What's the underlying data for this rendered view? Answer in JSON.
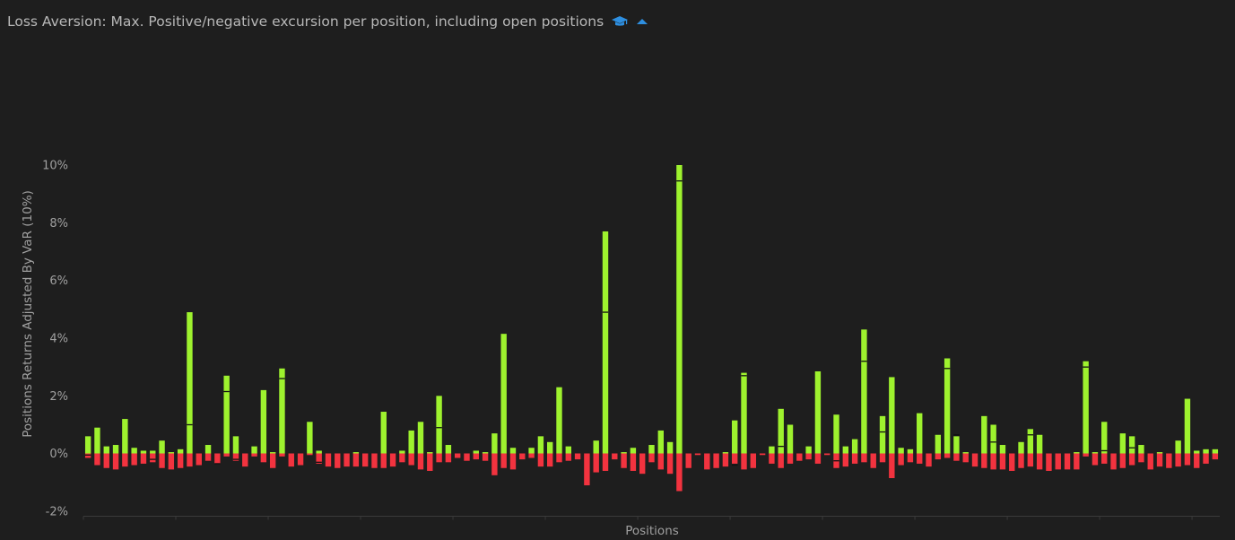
{
  "header": {
    "title": "Loss Aversion: Max. Positive/negative excursion per position, including open positions",
    "info_icon": "graduation-cap-icon",
    "collapse_icon": "caret-up-icon"
  },
  "colors": {
    "background": "#1e1e1e",
    "positive": "#9ef22e",
    "negative": "#f2333f",
    "marker": "#111111",
    "axis": "#3a3a3a",
    "text": "#a0a0a0",
    "accent": "#2e8fe0"
  },
  "chart_data": {
    "type": "bar",
    "title": "Loss Aversion: Max. Positive/negative excursion per position, including open positions",
    "xlabel": "Positions",
    "ylabel": "Positions Returns Adjusted By VaR (10%)",
    "ylim": [
      -2,
      10
    ],
    "y_ticks": [
      -2,
      0,
      2,
      4,
      6,
      8,
      10
    ],
    "y_tick_labels": [
      "-2%",
      "0%",
      "2%",
      "4%",
      "6%",
      "8%",
      "10%"
    ],
    "grid": false,
    "legend": "none",
    "series": [
      {
        "values": [
          0.6,
          0.9,
          0.25,
          0.3,
          1.2,
          0.2,
          0.1,
          0.1,
          0.45,
          0.05,
          0.15,
          4.9,
          0,
          0.3,
          0,
          2.7,
          0.6,
          0,
          0.25,
          2.2,
          0.05,
          2.95,
          0,
          0,
          1.1,
          0.1,
          0,
          0,
          0,
          0.05,
          0,
          0,
          1.45,
          0,
          0.1,
          0.8,
          1.1,
          0.05,
          2.0,
          0.3,
          0,
          0,
          0.1,
          0.05,
          0.7,
          4.15,
          0.2,
          0,
          0.2,
          0.6,
          0.4,
          2.3,
          0.25,
          0,
          0,
          0.45,
          7.7,
          0,
          0.05,
          0.2,
          0,
          0.3,
          0.8,
          0.4,
          10.0,
          0,
          0,
          0,
          0,
          0.05,
          1.15,
          2.8,
          0,
          0,
          0.25,
          1.55,
          1.0,
          0,
          0.25,
          2.85,
          0,
          1.35,
          0.25,
          0.5,
          4.3,
          0,
          1.3,
          2.65,
          0.2,
          0.15,
          1.4,
          0,
          0.65,
          3.3,
          0.6,
          0.05,
          0,
          1.3,
          1.0,
          0.3,
          0,
          0.4,
          0.85,
          0.65,
          0,
          0,
          0,
          0.05,
          3.2,
          0.05,
          1.1,
          0,
          0.7,
          0.6,
          0.3,
          0,
          0.05,
          0,
          0.45,
          1.9,
          0.1,
          0.15,
          0.15
        ],
        "color": "#9ef22e"
      },
      {
        "values": [
          -0.15,
          -0.4,
          -0.5,
          -0.55,
          -0.45,
          -0.4,
          -0.35,
          -0.3,
          -0.5,
          -0.55,
          -0.5,
          -0.45,
          -0.4,
          -0.25,
          -0.35,
          -0.1,
          -0.25,
          -0.45,
          -0.1,
          -0.3,
          -0.5,
          -0.1,
          -0.45,
          -0.4,
          -0.05,
          -0.35,
          -0.45,
          -0.5,
          -0.45,
          -0.45,
          -0.45,
          -0.5,
          -0.5,
          -0.45,
          -0.3,
          -0.4,
          -0.55,
          -0.6,
          -0.3,
          -0.3,
          -0.15,
          -0.25,
          -0.2,
          -0.25,
          -0.75,
          -0.5,
          -0.55,
          -0.2,
          -0.15,
          -0.45,
          -0.45,
          -0.3,
          -0.25,
          -0.2,
          -1.1,
          -0.65,
          -0.6,
          -0.2,
          -0.5,
          -0.6,
          -0.7,
          -0.3,
          -0.55,
          -0.7,
          -1.3,
          -0.5,
          -0.05,
          -0.55,
          -0.5,
          -0.45,
          -0.35,
          -0.55,
          -0.5,
          -0.05,
          -0.35,
          -0.5,
          -0.35,
          -0.25,
          -0.2,
          -0.35,
          -0.05,
          -0.5,
          -0.45,
          -0.35,
          -0.3,
          -0.5,
          -0.3,
          -0.85,
          -0.4,
          -0.3,
          -0.35,
          -0.45,
          -0.2,
          -0.15,
          -0.25,
          -0.3,
          -0.45,
          -0.5,
          -0.55,
          -0.55,
          -0.6,
          -0.5,
          -0.45,
          -0.55,
          -0.6,
          -0.55,
          -0.55,
          -0.55,
          -0.1,
          -0.4,
          -0.35,
          -0.55,
          -0.5,
          -0.4,
          -0.3,
          -0.55,
          -0.45,
          -0.5,
          -0.45,
          -0.4,
          -0.5,
          -0.35,
          -0.2
        ],
        "color": "#f2333f"
      },
      {
        "values": [
          -0.05,
          0,
          0,
          0,
          0,
          0,
          0,
          -0.2,
          0,
          0,
          0,
          1.0,
          0,
          0,
          -0.35,
          2.15,
          -0.2,
          0,
          0,
          0,
          0,
          2.6,
          0,
          0,
          0,
          -0.3,
          0,
          0,
          0,
          0,
          0,
          0,
          0,
          0,
          0,
          0,
          0,
          0,
          0.9,
          0,
          0,
          0,
          0,
          0,
          0,
          0,
          0,
          0,
          0,
          0,
          0,
          0,
          0,
          0,
          0,
          0,
          4.9,
          0,
          0,
          0,
          0,
          0,
          0,
          0,
          9.45,
          0,
          0,
          0,
          0,
          0,
          -0.4,
          2.7,
          0,
          0,
          0,
          0.25,
          0,
          0,
          0,
          0,
          0,
          -0.25,
          0,
          0,
          3.2,
          0,
          0.75,
          0,
          0,
          0,
          0,
          0,
          0,
          2.95,
          0.65,
          0,
          0,
          0,
          0.4,
          0,
          0,
          0,
          0.65,
          0,
          0,
          0,
          0,
          0,
          3.0,
          0,
          0.1,
          0,
          0,
          0.2,
          0,
          0,
          0,
          0,
          0,
          0,
          0,
          0,
          0
        ],
        "color": "#111111"
      }
    ]
  }
}
